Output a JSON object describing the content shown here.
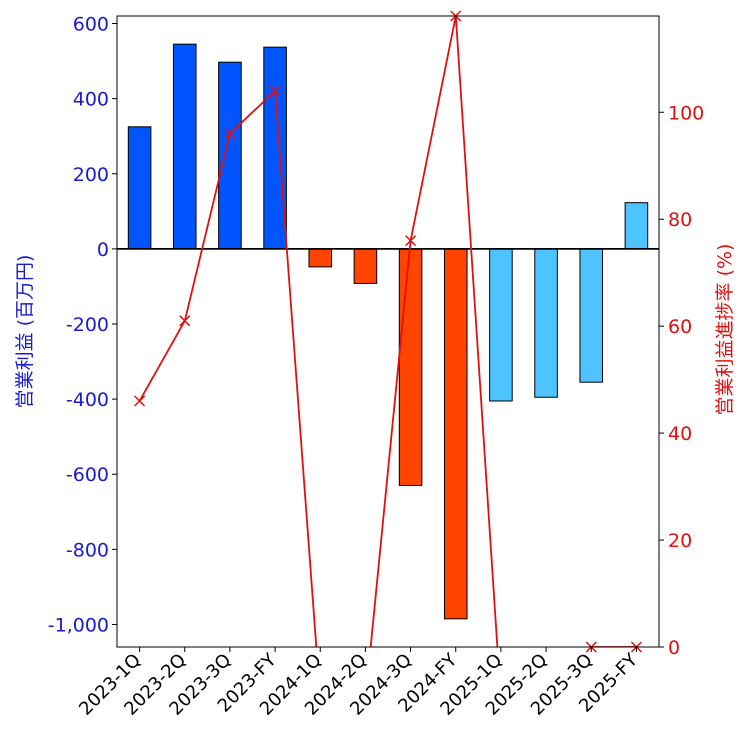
{
  "chart_data": {
    "type": "bar",
    "categories": [
      "2023-1Q",
      "2023-2Q",
      "2023-3Q",
      "2023-FY",
      "2024-1Q",
      "2024-2Q",
      "2024-3Q",
      "2024-FY",
      "2025-1Q",
      "2025-2Q",
      "2025-3Q",
      "2025-FY"
    ],
    "series": [
      {
        "axis": "left",
        "type": "bar",
        "values": [
          325,
          545,
          497,
          537,
          -48,
          -92,
          -630,
          -985,
          -405,
          -395,
          -355,
          123
        ],
        "colors": [
          "#0055ff",
          "#0055ff",
          "#0055ff",
          "#0055ff",
          "#ff4400",
          "#ff4400",
          "#ff4400",
          "#ff4400",
          "#4dc3ff",
          "#4dc3ff",
          "#4dc3ff",
          "#4dc3ff"
        ]
      },
      {
        "axis": "right",
        "type": "line",
        "color": "#e01010",
        "marker": "x",
        "values": [
          46,
          61,
          96,
          104,
          -10,
          -10,
          76,
          118,
          -10,
          null,
          0,
          0
        ]
      }
    ],
    "ylabel_left": "営業利益 (百万円)",
    "ylabel_right": "営業利益進捗率 (%)",
    "ylim_left": [
      -1060,
      620
    ],
    "ylim_right": [
      0,
      118
    ],
    "yticks_left": [
      600,
      400,
      200,
      0,
      -200,
      -400,
      -600,
      -800,
      -1000
    ],
    "yticks_left_labels": [
      "600",
      "400",
      "200",
      "0",
      "-200",
      "-400",
      "-600",
      "-800",
      "-1,000"
    ],
    "yticks_right": [
      100,
      80,
      60,
      40,
      20,
      0
    ],
    "yticks_right_labels": [
      "100",
      "80",
      "60",
      "40",
      "20",
      "0"
    ],
    "left_axis_color": "#1a1ad0",
    "right_axis_color": "#e01010",
    "zero_line": true,
    "grid": false,
    "legend": "none"
  }
}
